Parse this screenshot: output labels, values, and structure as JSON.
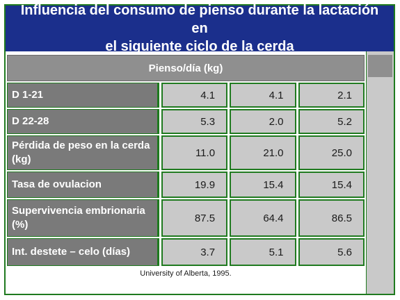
{
  "title": {
    "line1": "Influencia del consumo de pienso durante la lactación en",
    "line2": "el siguiente ciclo de la cerda"
  },
  "table": {
    "header": "Pienso/día (kg)",
    "rows": [
      {
        "label": "D 1-21",
        "values": [
          "4.1",
          "4.1",
          "2.1"
        ]
      },
      {
        "label": "D 22-28",
        "values": [
          "5.3",
          "2.0",
          "5.2"
        ]
      },
      {
        "label": "Pérdida de peso en la cerda (kg)",
        "values": [
          "11.0",
          "21.0",
          "25.0"
        ]
      },
      {
        "label": "Tasa de ovulacion",
        "values": [
          "19.9",
          "15.4",
          "15.4"
        ]
      },
      {
        "label": "Supervivencia embrionaria (%)",
        "values": [
          "87.5",
          "64.4",
          "86.5"
        ]
      },
      {
        "label": "Int. destete – celo (días)",
        "values": [
          "3.7",
          "5.1",
          "5.6"
        ]
      }
    ]
  },
  "source": "University of Alberta, 1995.",
  "colors": {
    "title_bg": "#1b2f8c",
    "border": "#1f7a1f",
    "label_bg": "#7a7a7a",
    "cell_bg": "#c9c9c9"
  }
}
